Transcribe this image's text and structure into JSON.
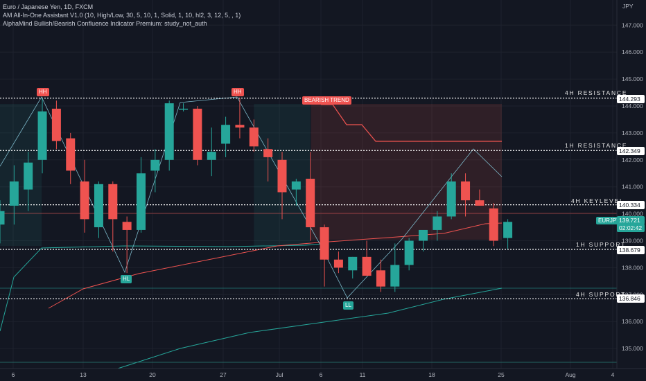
{
  "header": {
    "symbol_title": "Euro / Japanese Yen, 1D, FXCM",
    "indicator_1": "AM All-In-One Assistant V1.0 (10, High/Low, 30, 5, 10, 1, Solid, 1, 10, hl2, 3, 12, 5, , 1)",
    "indicator_2": "AlphaMind Bullish/Bearish Confluence Indicator Premium: study_not_auth"
  },
  "axis": {
    "currency": "JPY",
    "price_ticks": [
      "147.000",
      "146.000",
      "145.000",
      "144.000",
      "143.000",
      "142.000",
      "141.000",
      "140.000",
      "139.000",
      "138.000",
      "137.000",
      "136.000",
      "135.000"
    ],
    "date_ticks": [
      "6",
      "13",
      "20",
      "27",
      "Jul",
      "6",
      "11",
      "18",
      "25",
      "Aug",
      "4"
    ]
  },
  "levels": [
    {
      "name": "4H RESISTANCE",
      "price": "144.293",
      "value": 144.293
    },
    {
      "name": "1H RESISTANCE",
      "price": "142.349",
      "value": 142.349
    },
    {
      "name": "4H KEYLEVEL",
      "price": "140.334",
      "value": 140.334
    },
    {
      "name": "1H SUPPORT",
      "price": "138.679",
      "value": 138.679
    },
    {
      "name": "4H SUPPORT",
      "price": "136.846",
      "value": 136.846
    }
  ],
  "current": {
    "ticker": "EURJPY",
    "price": "139.721",
    "countdown": "02:02:42"
  },
  "labels": {
    "hh1": "HH",
    "hh2": "HH",
    "hl": "HL",
    "ll": "LL",
    "trend": "BEARISH TREND"
  },
  "colors": {
    "up": "#26a69a",
    "down": "#ef5350",
    "bg": "#131722",
    "grid": "#1e222d",
    "text": "#b2b5be"
  },
  "chart_data": {
    "type": "candlestick",
    "title": "Euro / Japanese Yen, 1D, FXCM",
    "ylabel": "JPY",
    "ylim": [
      134.2,
      147.8
    ],
    "candles": [
      {
        "o": 139.6,
        "h": 140.5,
        "l": 138.9,
        "c": 140.1
      },
      {
        "o": 140.3,
        "h": 141.8,
        "l": 139.6,
        "c": 141.2
      },
      {
        "o": 140.9,
        "h": 142.3,
        "l": 140.1,
        "c": 141.9
      },
      {
        "o": 142.0,
        "h": 144.3,
        "l": 141.5,
        "c": 143.8
      },
      {
        "o": 143.9,
        "h": 144.2,
        "l": 142.4,
        "c": 142.7
      },
      {
        "o": 142.8,
        "h": 143.0,
        "l": 141.1,
        "c": 141.6
      },
      {
        "o": 141.2,
        "h": 142.0,
        "l": 139.3,
        "c": 139.8
      },
      {
        "o": 139.5,
        "h": 141.2,
        "l": 139.1,
        "c": 141.1
      },
      {
        "o": 141.1,
        "h": 141.2,
        "l": 138.6,
        "c": 139.8
      },
      {
        "o": 139.7,
        "h": 139.9,
        "l": 137.8,
        "c": 139.4
      },
      {
        "o": 139.4,
        "h": 142.1,
        "l": 139.3,
        "c": 141.5
      },
      {
        "o": 141.6,
        "h": 142.4,
        "l": 140.8,
        "c": 142.0
      },
      {
        "o": 142.0,
        "h": 144.2,
        "l": 141.6,
        "c": 144.1
      },
      {
        "o": 143.9,
        "h": 144.1,
        "l": 143.8,
        "c": 143.9
      },
      {
        "o": 143.9,
        "h": 144.0,
        "l": 141.8,
        "c": 142.0
      },
      {
        "o": 142.0,
        "h": 143.2,
        "l": 141.4,
        "c": 142.3
      },
      {
        "o": 142.6,
        "h": 143.6,
        "l": 142.1,
        "c": 143.3
      },
      {
        "o": 143.3,
        "h": 144.3,
        "l": 142.8,
        "c": 143.2
      },
      {
        "o": 143.2,
        "h": 143.5,
        "l": 142.3,
        "c": 142.5
      },
      {
        "o": 142.4,
        "h": 142.8,
        "l": 141.2,
        "c": 142.1
      },
      {
        "o": 142.0,
        "h": 142.3,
        "l": 139.8,
        "c": 140.8
      },
      {
        "o": 140.9,
        "h": 141.3,
        "l": 140.3,
        "c": 141.2
      },
      {
        "o": 141.3,
        "h": 142.3,
        "l": 139.0,
        "c": 139.5
      },
      {
        "o": 139.5,
        "h": 139.6,
        "l": 137.3,
        "c": 138.3
      },
      {
        "o": 138.3,
        "h": 138.6,
        "l": 137.8,
        "c": 138.0
      },
      {
        "o": 137.9,
        "h": 138.4,
        "l": 137.6,
        "c": 138.4
      },
      {
        "o": 138.4,
        "h": 139.0,
        "l": 137.7,
        "c": 137.7
      },
      {
        "o": 137.9,
        "h": 138.3,
        "l": 137.1,
        "c": 137.3
      },
      {
        "o": 137.3,
        "h": 138.9,
        "l": 137.1,
        "c": 138.1
      },
      {
        "o": 138.1,
        "h": 139.1,
        "l": 137.9,
        "c": 139.0
      },
      {
        "o": 139.0,
        "h": 139.4,
        "l": 138.6,
        "c": 139.4
      },
      {
        "o": 139.4,
        "h": 140.1,
        "l": 139.0,
        "c": 139.9
      },
      {
        "o": 139.9,
        "h": 141.5,
        "l": 139.8,
        "c": 141.2
      },
      {
        "o": 141.2,
        "h": 141.5,
        "l": 139.9,
        "c": 140.5
      },
      {
        "o": 140.5,
        "h": 140.9,
        "l": 140.3,
        "c": 140.3
      },
      {
        "o": 140.2,
        "h": 140.4,
        "l": 138.8,
        "c": 139.0
      },
      {
        "o": 139.1,
        "h": 139.8,
        "l": 138.7,
        "c": 139.7
      }
    ]
  }
}
